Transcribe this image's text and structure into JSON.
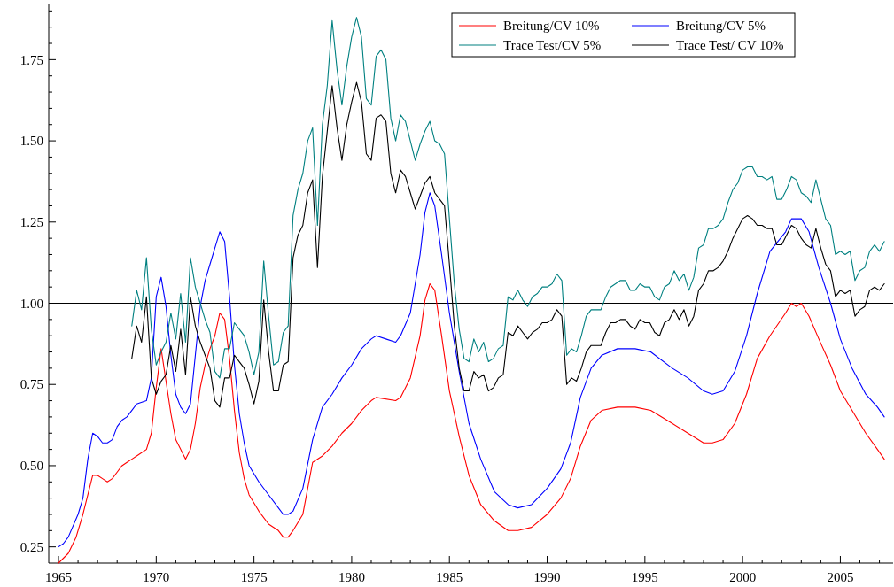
{
  "chart_data": {
    "type": "line",
    "xlim": [
      1964.5,
      2007.7
    ],
    "ylim": [
      0.2,
      1.92
    ],
    "xticks": [
      {
        "value": 1965,
        "label": "1965"
      },
      {
        "value": 1966,
        "label": null
      },
      {
        "value": 1967,
        "label": null
      },
      {
        "value": 1968,
        "label": null
      },
      {
        "value": 1969,
        "label": null
      },
      {
        "value": 1970,
        "label": "1970"
      },
      {
        "value": 1971,
        "label": null
      },
      {
        "value": 1972,
        "label": null
      },
      {
        "value": 1973,
        "label": null
      },
      {
        "value": 1974,
        "label": null
      },
      {
        "value": 1975,
        "label": "1975"
      },
      {
        "value": 1976,
        "label": null
      },
      {
        "value": 1977,
        "label": null
      },
      {
        "value": 1978,
        "label": null
      },
      {
        "value": 1979,
        "label": null
      },
      {
        "value": 1980,
        "label": "1980"
      },
      {
        "value": 1981,
        "label": null
      },
      {
        "value": 1982,
        "label": null
      },
      {
        "value": 1983,
        "label": null
      },
      {
        "value": 1984,
        "label": null
      },
      {
        "value": 1985,
        "label": "1985"
      },
      {
        "value": 1986,
        "label": null
      },
      {
        "value": 1987,
        "label": null
      },
      {
        "value": 1988,
        "label": null
      },
      {
        "value": 1989,
        "label": null
      },
      {
        "value": 1990,
        "label": "1990"
      },
      {
        "value": 1991,
        "label": null
      },
      {
        "value": 1992,
        "label": null
      },
      {
        "value": 1993,
        "label": null
      },
      {
        "value": 1994,
        "label": null
      },
      {
        "value": 1995,
        "label": "1995"
      },
      {
        "value": 1996,
        "label": null
      },
      {
        "value": 1997,
        "label": null
      },
      {
        "value": 1998,
        "label": null
      },
      {
        "value": 1999,
        "label": null
      },
      {
        "value": 2000,
        "label": "2000"
      },
      {
        "value": 2001,
        "label": null
      },
      {
        "value": 2002,
        "label": null
      },
      {
        "value": 2003,
        "label": null
      },
      {
        "value": 2004,
        "label": null
      },
      {
        "value": 2005,
        "label": "2005"
      },
      {
        "value": 2006,
        "label": null
      },
      {
        "value": 2007,
        "label": null
      }
    ],
    "yticks": [
      {
        "value": 0.25,
        "label": "0.25"
      },
      {
        "value": 0.3,
        "label": null
      },
      {
        "value": 0.35,
        "label": null
      },
      {
        "value": 0.4,
        "label": null
      },
      {
        "value": 0.45,
        "label": null
      },
      {
        "value": 0.5,
        "label": "0.50"
      },
      {
        "value": 0.55,
        "label": null
      },
      {
        "value": 0.6,
        "label": null
      },
      {
        "value": 0.65,
        "label": null
      },
      {
        "value": 0.7,
        "label": null
      },
      {
        "value": 0.75,
        "label": "0.75"
      },
      {
        "value": 0.8,
        "label": null
      },
      {
        "value": 0.85,
        "label": null
      },
      {
        "value": 0.9,
        "label": null
      },
      {
        "value": 0.95,
        "label": null
      },
      {
        "value": 1,
        "label": "1.00"
      },
      {
        "value": 1.05,
        "label": null
      },
      {
        "value": 1.1,
        "label": null
      },
      {
        "value": 1.15,
        "label": null
      },
      {
        "value": 1.2,
        "label": null
      },
      {
        "value": 1.25,
        "label": "1.25"
      },
      {
        "value": 1.3,
        "label": null
      },
      {
        "value": 1.35,
        "label": null
      },
      {
        "value": 1.4,
        "label": null
      },
      {
        "value": 1.45,
        "label": null
      },
      {
        "value": 1.5,
        "label": "1.50"
      },
      {
        "value": 1.55,
        "label": null
      },
      {
        "value": 1.6,
        "label": null
      },
      {
        "value": 1.65,
        "label": null
      },
      {
        "value": 1.7,
        "label": null
      },
      {
        "value": 1.75,
        "label": "1.75"
      },
      {
        "value": 1.8,
        "label": null
      },
      {
        "value": 1.85,
        "label": null
      },
      {
        "value": 1.9,
        "label": null
      }
    ],
    "grid": false,
    "legend": "top right",
    "line_style": "solid",
    "ref_lines": [
      {
        "axis": "y",
        "value": 1,
        "color": "#000000"
      }
    ],
    "series": [
      {
        "name": "Breitung/CV 10%",
        "color": "#ff0000",
        "x": [
          1965,
          1965.5,
          1965.9,
          1966.25,
          1966.75,
          1967,
          1967.25,
          1967.5,
          1967.75,
          1968,
          1968.25,
          1968.5,
          1968.75,
          1969,
          1969.5,
          1969.75,
          1970,
          1970.25,
          1970.75,
          1971,
          1971.25,
          1971.5,
          1971.75,
          1972,
          1972.25,
          1972.5,
          1972.75,
          1973,
          1973.25,
          1973.5,
          1973.75,
          1974,
          1974.25,
          1974.5,
          1974.75,
          1975.25,
          1975.75,
          1976.25,
          1976.5,
          1976.75,
          1977,
          1977.5,
          1978,
          1978.5,
          1979,
          1979.5,
          1980,
          1980.5,
          1981,
          1981.25,
          1982.25,
          1982.5,
          1983,
          1983.5,
          1983.75,
          1984,
          1984.25,
          1984.6,
          1985,
          1985.5,
          1986,
          1986.6,
          1987.3,
          1988,
          1988.5,
          1989.2,
          1990,
          1990.7,
          1991.2,
          1991.7,
          1992.25,
          1992.8,
          1993.6,
          1994.5,
          1995.3,
          1996.4,
          1997.2,
          1998,
          1998.45,
          1999,
          1999.6,
          2000.2,
          2000.75,
          2001.4,
          2002.2,
          2002.5,
          2002.75,
          2003,
          2003.4,
          2003.9,
          2004.5,
          2005,
          2005.6,
          2006.3,
          2006.9,
          2007.25
        ],
        "values": [
          0.2,
          0.23,
          0.28,
          0.35,
          0.47,
          0.47,
          0.46,
          0.45,
          0.46,
          0.48,
          0.5,
          0.51,
          0.52,
          0.53,
          0.55,
          0.6,
          0.74,
          0.86,
          0.66,
          0.58,
          0.55,
          0.52,
          0.55,
          0.63,
          0.74,
          0.81,
          0.86,
          0.9,
          0.97,
          0.95,
          0.83,
          0.67,
          0.54,
          0.46,
          0.41,
          0.36,
          0.32,
          0.3,
          0.28,
          0.28,
          0.3,
          0.35,
          0.51,
          0.53,
          0.56,
          0.6,
          0.63,
          0.67,
          0.7,
          0.71,
          0.7,
          0.71,
          0.77,
          0.9,
          1.01,
          1.06,
          1.04,
          0.9,
          0.73,
          0.59,
          0.47,
          0.38,
          0.33,
          0.3,
          0.3,
          0.31,
          0.35,
          0.4,
          0.46,
          0.56,
          0.64,
          0.67,
          0.68,
          0.68,
          0.67,
          0.63,
          0.6,
          0.57,
          0.57,
          0.58,
          0.63,
          0.72,
          0.83,
          0.9,
          0.97,
          1,
          0.99,
          1,
          0.96,
          0.89,
          0.81,
          0.73,
          0.67,
          0.6,
          0.55,
          0.52
        ]
      },
      {
        "name": "Breitung/CV 5%",
        "color": "#0000ff",
        "x": [
          1965,
          1965.25,
          1965.5,
          1966,
          1966.25,
          1966.5,
          1966.75,
          1967,
          1967.25,
          1967.5,
          1967.75,
          1968,
          1968.25,
          1968.5,
          1968.75,
          1969,
          1969.5,
          1969.75,
          1970,
          1970.25,
          1970.5,
          1970.75,
          1971,
          1971.25,
          1971.5,
          1971.75,
          1972,
          1972.25,
          1972.5,
          1972.75,
          1973,
          1973.25,
          1973.5,
          1973.75,
          1974,
          1974.25,
          1974.5,
          1974.75,
          1975.25,
          1975.75,
          1976.25,
          1976.5,
          1976.75,
          1977,
          1977.5,
          1978,
          1978.5,
          1979,
          1979.5,
          1980,
          1980.5,
          1981,
          1981.25,
          1981.75,
          1982.25,
          1982.5,
          1983,
          1983.5,
          1983.75,
          1984,
          1984.25,
          1984.6,
          1985,
          1985.5,
          1986,
          1986.6,
          1987.3,
          1988,
          1988.5,
          1989.2,
          1990,
          1990.7,
          1991.2,
          1991.7,
          1992.25,
          1992.8,
          1993.6,
          1994.5,
          1995.3,
          1996.4,
          1997.2,
          1998,
          1998.45,
          1999,
          1999.6,
          2000.2,
          2000.75,
          2001.4,
          2002.2,
          2002.5,
          2002.75,
          2003,
          2003.4,
          2003.9,
          2004.5,
          2005,
          2005.6,
          2006.3,
          2006.9,
          2007.25
        ],
        "values": [
          0.25,
          0.26,
          0.28,
          0.35,
          0.4,
          0.52,
          0.6,
          0.59,
          0.57,
          0.57,
          0.58,
          0.62,
          0.64,
          0.65,
          0.67,
          0.69,
          0.7,
          0.77,
          1.02,
          1.08,
          0.99,
          0.84,
          0.72,
          0.68,
          0.66,
          0.69,
          0.84,
          0.99,
          1.07,
          1.12,
          1.17,
          1.22,
          1.19,
          1.02,
          0.81,
          0.66,
          0.57,
          0.5,
          0.45,
          0.41,
          0.37,
          0.35,
          0.35,
          0.36,
          0.43,
          0.58,
          0.68,
          0.72,
          0.77,
          0.81,
          0.86,
          0.89,
          0.9,
          0.89,
          0.88,
          0.9,
          0.97,
          1.15,
          1.28,
          1.34,
          1.3,
          1.15,
          0.97,
          0.79,
          0.63,
          0.52,
          0.42,
          0.38,
          0.37,
          0.38,
          0.43,
          0.49,
          0.57,
          0.71,
          0.8,
          0.84,
          0.86,
          0.86,
          0.85,
          0.8,
          0.77,
          0.73,
          0.72,
          0.73,
          0.79,
          0.9,
          1.03,
          1.16,
          1.22,
          1.26,
          1.26,
          1.26,
          1.22,
          1.11,
          1,
          0.89,
          0.8,
          0.72,
          0.68,
          0.65
        ]
      },
      {
        "name": "Trace Test/CV 5%",
        "color": "#008080",
        "x": [
          1968.75,
          1969,
          1969.25,
          1969.5,
          1969.75,
          1970,
          1970.25,
          1970.5,
          1970.75,
          1971,
          1971.25,
          1971.5,
          1971.75,
          1972,
          1972.25,
          1972.5,
          1972.75,
          1973,
          1973.25,
          1973.5,
          1973.75,
          1974,
          1974.25,
          1974.5,
          1974.75,
          1975,
          1975.25,
          1975.5,
          1975.75,
          1976,
          1976.25,
          1976.5,
          1976.75,
          1977,
          1977.25,
          1977.5,
          1977.75,
          1978,
          1978.25,
          1978.5,
          1978.75,
          1979,
          1979.25,
          1979.5,
          1979.75,
          1980,
          1980.25,
          1980.5,
          1980.75,
          1981,
          1981.25,
          1981.5,
          1981.75,
          1982,
          1982.25,
          1982.5,
          1982.75,
          1983,
          1983.25,
          1983.5,
          1983.75,
          1984,
          1984.25,
          1984.5,
          1984.75,
          1985,
          1985.25,
          1985.5,
          1985.75,
          1986,
          1986.25,
          1986.5,
          1986.75,
          1987,
          1987.25,
          1987.5,
          1987.75,
          1988,
          1988.25,
          1988.5,
          1988.75,
          1989,
          1989.25,
          1989.5,
          1989.75,
          1990,
          1990.25,
          1990.5,
          1990.75,
          1991,
          1991.25,
          1991.5,
          1991.75,
          1992,
          1992.25,
          1992.5,
          1992.75,
          1993,
          1993.25,
          1993.5,
          1993.75,
          1994,
          1994.25,
          1994.5,
          1994.75,
          1995,
          1995.25,
          1995.5,
          1995.75,
          1996,
          1996.25,
          1996.5,
          1996.75,
          1997,
          1997.25,
          1997.5,
          1997.75,
          1998,
          1998.25,
          1998.5,
          1998.75,
          1999,
          1999.25,
          1999.5,
          1999.75,
          2000,
          2000.25,
          2000.5,
          2000.75,
          2001,
          2001.25,
          2001.5,
          2001.75,
          2002,
          2002.25,
          2002.5,
          2002.75,
          2003,
          2003.25,
          2003.5,
          2003.75,
          2004,
          2004.25,
          2004.5,
          2004.75,
          2005,
          2005.25,
          2005.5,
          2005.75,
          2006,
          2006.25,
          2006.5,
          2006.75,
          2007,
          2007.25
        ],
        "values": [
          0.93,
          1.04,
          0.98,
          1.14,
          0.92,
          0.81,
          0.85,
          0.88,
          0.97,
          0.89,
          1.03,
          0.88,
          1.14,
          1.05,
          1,
          0.95,
          0.91,
          0.79,
          0.77,
          0.86,
          0.86,
          0.94,
          0.92,
          0.9,
          0.85,
          0.78,
          0.85,
          1.13,
          0.96,
          0.81,
          0.82,
          0.91,
          0.93,
          1.27,
          1.35,
          1.4,
          1.5,
          1.54,
          1.24,
          1.55,
          1.67,
          1.87,
          1.72,
          1.61,
          1.73,
          1.82,
          1.88,
          1.82,
          1.63,
          1.61,
          1.76,
          1.78,
          1.75,
          1.57,
          1.5,
          1.58,
          1.56,
          1.5,
          1.44,
          1.49,
          1.53,
          1.56,
          1.5,
          1.49,
          1.46,
          1.26,
          1.06,
          0.92,
          0.83,
          0.82,
          0.89,
          0.85,
          0.88,
          0.82,
          0.83,
          0.86,
          0.87,
          1.02,
          1.01,
          1.04,
          1.01,
          0.99,
          1.02,
          1.03,
          1.05,
          1.05,
          1.06,
          1.09,
          1.07,
          0.84,
          0.86,
          0.85,
          0.9,
          0.96,
          0.98,
          0.98,
          0.98,
          1.02,
          1.05,
          1.06,
          1.07,
          1.07,
          1.04,
          1.04,
          1.06,
          1.05,
          1.05,
          1.02,
          1.01,
          1.05,
          1.06,
          1.1,
          1.07,
          1.09,
          1.04,
          1.08,
          1.17,
          1.18,
          1.23,
          1.23,
          1.24,
          1.26,
          1.31,
          1.35,
          1.37,
          1.41,
          1.42,
          1.42,
          1.39,
          1.39,
          1.38,
          1.39,
          1.32,
          1.32,
          1.35,
          1.39,
          1.38,
          1.34,
          1.33,
          1.31,
          1.38,
          1.32,
          1.26,
          1.24,
          1.15,
          1.16,
          1.15,
          1.16,
          1.07,
          1.1,
          1.11,
          1.16,
          1.18,
          1.16,
          1.19
        ]
      },
      {
        "name": "Trace Test/ CV 10%",
        "color": "#000000",
        "x": [
          1968.75,
          1969,
          1969.25,
          1969.5,
          1969.75,
          1970,
          1970.25,
          1970.5,
          1970.75,
          1971,
          1971.25,
          1971.5,
          1971.75,
          1972,
          1972.25,
          1972.5,
          1972.75,
          1973,
          1973.25,
          1973.5,
          1973.75,
          1974,
          1974.25,
          1974.5,
          1974.75,
          1975,
          1975.25,
          1975.5,
          1975.75,
          1976,
          1976.25,
          1976.5,
          1976.75,
          1977,
          1977.25,
          1977.5,
          1977.75,
          1978,
          1978.25,
          1978.5,
          1978.75,
          1979,
          1979.25,
          1979.5,
          1979.75,
          1980,
          1980.25,
          1980.5,
          1980.75,
          1981,
          1981.25,
          1981.5,
          1981.75,
          1982,
          1982.25,
          1982.5,
          1982.75,
          1983,
          1983.25,
          1983.5,
          1983.75,
          1984,
          1984.25,
          1984.5,
          1984.75,
          1985,
          1985.25,
          1985.5,
          1985.75,
          1986,
          1986.25,
          1986.5,
          1986.75,
          1987,
          1987.25,
          1987.5,
          1987.75,
          1988,
          1988.25,
          1988.5,
          1988.75,
          1989,
          1989.25,
          1989.5,
          1989.75,
          1990,
          1990.25,
          1990.5,
          1990.75,
          1991,
          1991.25,
          1991.5,
          1991.75,
          1992,
          1992.25,
          1992.5,
          1992.75,
          1993,
          1993.25,
          1993.5,
          1993.75,
          1994,
          1994.25,
          1994.5,
          1994.75,
          1995,
          1995.25,
          1995.5,
          1995.75,
          1996,
          1996.25,
          1996.5,
          1996.75,
          1997,
          1997.25,
          1997.5,
          1997.75,
          1998,
          1998.25,
          1998.5,
          1998.75,
          1999,
          1999.25,
          1999.5,
          1999.75,
          2000,
          2000.25,
          2000.5,
          2000.75,
          2001,
          2001.25,
          2001.5,
          2001.75,
          2002,
          2002.25,
          2002.5,
          2002.75,
          2003,
          2003.25,
          2003.5,
          2003.75,
          2004,
          2004.25,
          2004.5,
          2004.75,
          2005,
          2005.25,
          2005.5,
          2005.75,
          2006,
          2006.25,
          2006.5,
          2006.75,
          2007,
          2007.25
        ],
        "values": [
          0.83,
          0.93,
          0.88,
          1.02,
          0.77,
          0.72,
          0.76,
          0.78,
          0.87,
          0.79,
          0.92,
          0.78,
          1.02,
          0.93,
          0.88,
          0.84,
          0.8,
          0.7,
          0.68,
          0.77,
          0.77,
          0.84,
          0.82,
          0.8,
          0.75,
          0.69,
          0.76,
          1.01,
          0.85,
          0.73,
          0.73,
          0.81,
          0.82,
          1.14,
          1.21,
          1.24,
          1.34,
          1.38,
          1.11,
          1.39,
          1.53,
          1.67,
          1.54,
          1.44,
          1.55,
          1.62,
          1.68,
          1.62,
          1.46,
          1.44,
          1.57,
          1.58,
          1.56,
          1.4,
          1.34,
          1.41,
          1.39,
          1.34,
          1.29,
          1.33,
          1.37,
          1.39,
          1.34,
          1.32,
          1.3,
          1.12,
          0.93,
          0.8,
          0.73,
          0.73,
          0.79,
          0.77,
          0.78,
          0.73,
          0.74,
          0.77,
          0.78,
          0.91,
          0.9,
          0.93,
          0.91,
          0.89,
          0.91,
          0.92,
          0.94,
          0.94,
          0.95,
          0.98,
          0.96,
          0.75,
          0.77,
          0.76,
          0.8,
          0.85,
          0.87,
          0.87,
          0.87,
          0.91,
          0.94,
          0.94,
          0.95,
          0.95,
          0.93,
          0.92,
          0.95,
          0.94,
          0.94,
          0.91,
          0.9,
          0.94,
          0.95,
          0.98,
          0.95,
          0.98,
          0.93,
          0.96,
          1.04,
          1.06,
          1.1,
          1.1,
          1.11,
          1.13,
          1.16,
          1.2,
          1.23,
          1.26,
          1.27,
          1.26,
          1.24,
          1.24,
          1.23,
          1.23,
          1.18,
          1.18,
          1.21,
          1.24,
          1.23,
          1.2,
          1.18,
          1.17,
          1.23,
          1.17,
          1.12,
          1.1,
          1.02,
          1.04,
          1.03,
          1.04,
          0.96,
          0.98,
          0.99,
          1.04,
          1.05,
          1.04,
          1.06
        ]
      }
    ]
  }
}
